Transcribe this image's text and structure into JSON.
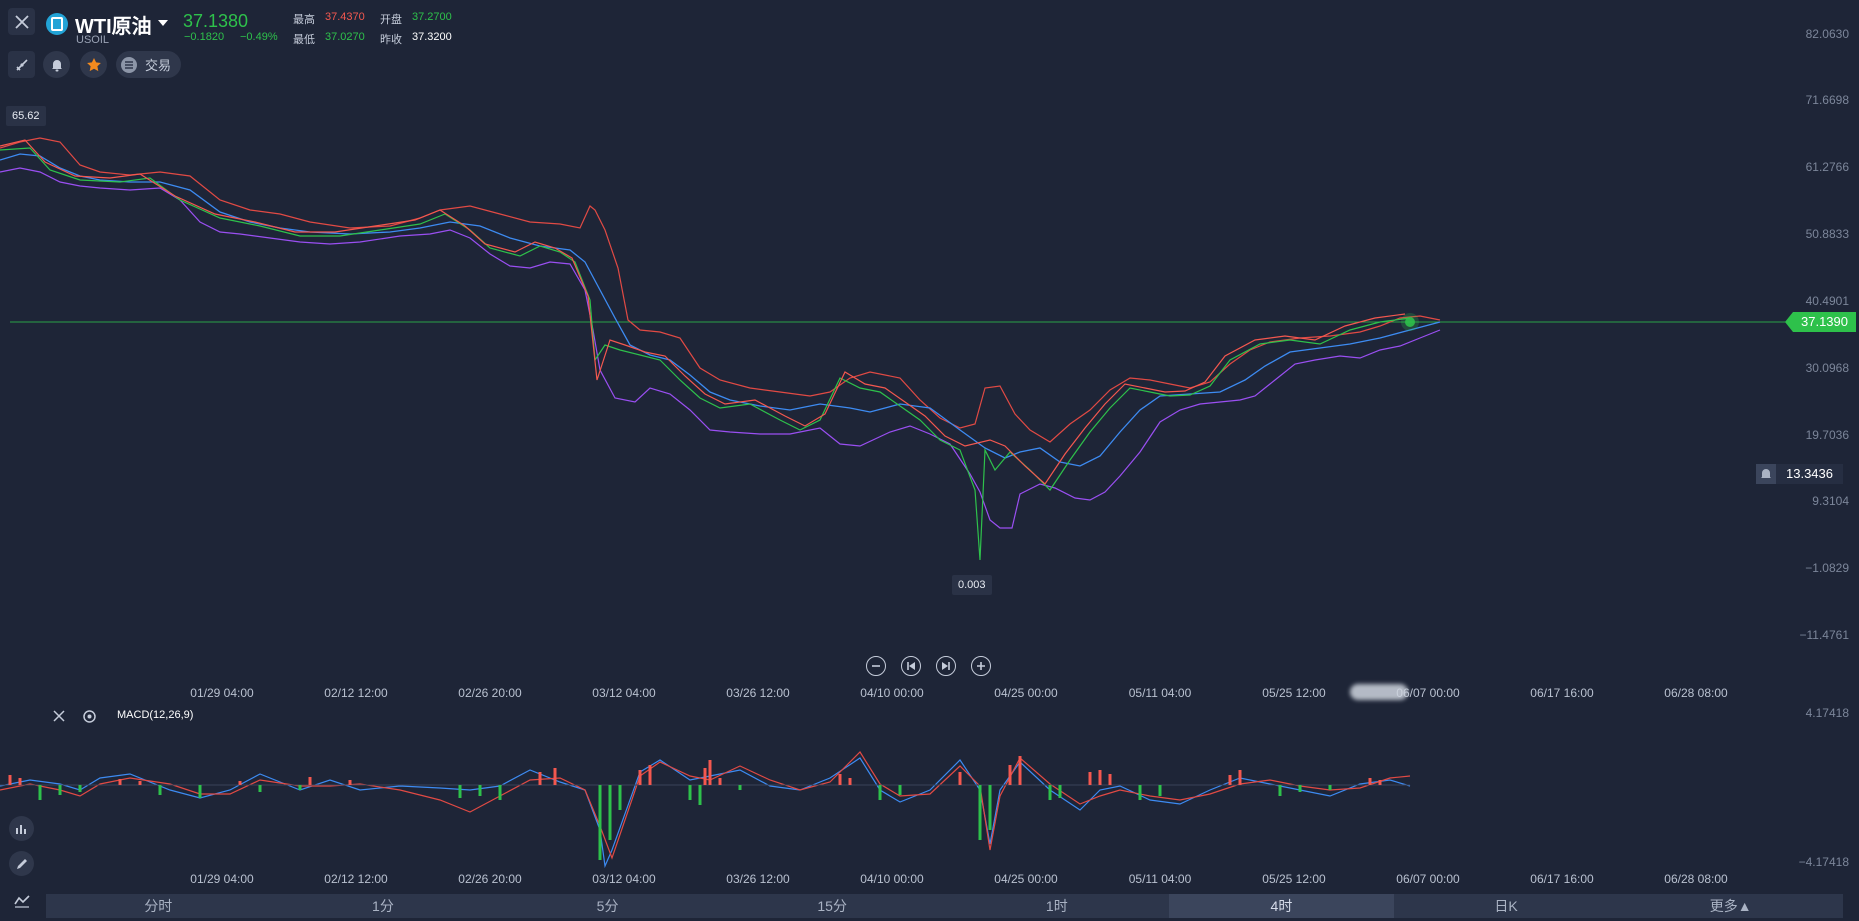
{
  "header": {
    "symbol_name": "WTI原油",
    "symbol_code": "USOIL",
    "last_price": "37.1380",
    "change": "−0.1820",
    "change_pct": "−0.49%",
    "high_label": "最高",
    "high_value": "37.4370",
    "open_label": "开盘",
    "open_value": "37.2700",
    "low_label": "最低",
    "low_value": "37.0270",
    "prev_close_label": "昨收",
    "prev_close_value": "37.3200",
    "trade_label": "交易"
  },
  "price_axis": [
    "82.0630",
    "71.6698",
    "61.2766",
    "50.8833",
    "40.4901",
    "30.0968",
    "19.7036",
    "9.3104",
    "−1.0829",
    "−11.4761"
  ],
  "current_price_tag": "37.1390",
  "alert_price_tag": "13.3436",
  "max_marker": "65.62",
  "min_marker": "0.003",
  "time_axis": [
    "01/29 04:00",
    "02/12 12:00",
    "02/26 20:00",
    "03/12 04:00",
    "03/26 12:00",
    "04/10 00:00",
    "04/25 00:00",
    "05/11 04:00",
    "05/25 12:00",
    "06/07 00:00",
    "06/17 16:00",
    "06/28 08:00"
  ],
  "indicator": {
    "name": "MACD(12,26,9)",
    "axis_top": "4.17418",
    "axis_bottom": "−4.17418"
  },
  "timeframes": [
    "分时",
    "1分",
    "5分",
    "15分",
    "1时",
    "4时",
    "日K",
    "更多▲"
  ],
  "active_timeframe": "4时",
  "colors": {
    "up": "#2ec14b",
    "down": "#f4584f",
    "background": "#1e2537",
    "ma": "#3d8bf2",
    "upper_band": "#e14a44",
    "lower_band": "#9a4ff2"
  }
}
